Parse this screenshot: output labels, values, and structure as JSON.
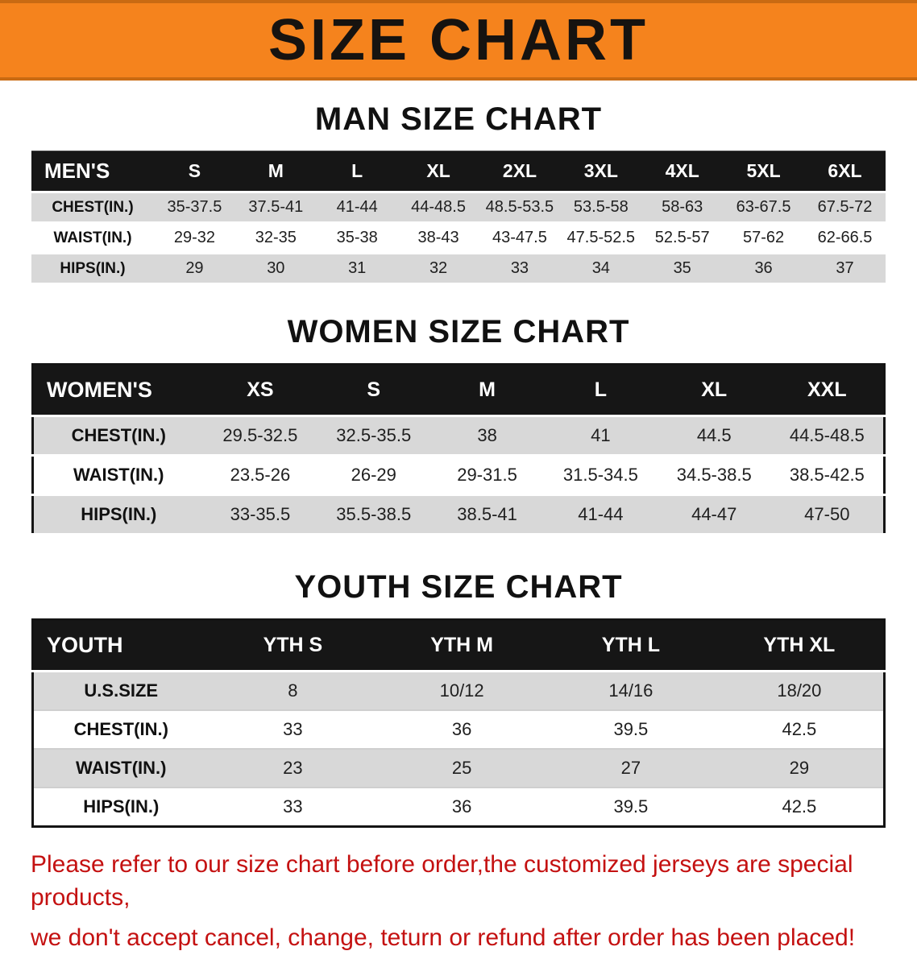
{
  "banner": {
    "title": "SIZE CHART",
    "background": "#f5831d",
    "text_color": "#161310"
  },
  "sections": [
    {
      "heading": "MAN SIZE CHART",
      "table": {
        "label": "MEN'S",
        "columns": [
          "S",
          "M",
          "L",
          "XL",
          "2XL",
          "3XL",
          "4XL",
          "5XL",
          "6XL"
        ],
        "rows": [
          {
            "label": "CHEST(IN.)",
            "values": [
              "35-37.5",
              "37.5-41",
              "41-44",
              "44-48.5",
              "48.5-53.5",
              "53.5-58",
              "58-63",
              "63-67.5",
              "67.5-72"
            ]
          },
          {
            "label": "WAIST(IN.)",
            "values": [
              "29-32",
              "32-35",
              "35-38",
              "38-43",
              "43-47.5",
              "47.5-52.5",
              "52.5-57",
              "57-62",
              "62-66.5"
            ]
          },
          {
            "label": "HIPS(IN.)",
            "values": [
              "29",
              "30",
              "31",
              "32",
              "33",
              "34",
              "35",
              "36",
              "37"
            ]
          }
        ]
      }
    },
    {
      "heading": "WOMEN SIZE CHART",
      "table": {
        "label": "WOMEN'S",
        "columns": [
          "XS",
          "S",
          "M",
          "L",
          "XL",
          "XXL"
        ],
        "rows": [
          {
            "label": "CHEST(IN.)",
            "values": [
              "29.5-32.5",
              "32.5-35.5",
              "38",
              "41",
              "44.5",
              "44.5-48.5"
            ]
          },
          {
            "label": "WAIST(IN.)",
            "values": [
              "23.5-26",
              "26-29",
              "29-31.5",
              "31.5-34.5",
              "34.5-38.5",
              "38.5-42.5"
            ]
          },
          {
            "label": "HIPS(IN.)",
            "values": [
              "33-35.5",
              "35.5-38.5",
              "38.5-41",
              "41-44",
              "44-47",
              "47-50"
            ]
          }
        ]
      }
    },
    {
      "heading": "YOUTH SIZE CHART",
      "table": {
        "label": "YOUTH",
        "columns": [
          "YTH S",
          "YTH M",
          "YTH L",
          "YTH XL"
        ],
        "rows": [
          {
            "label": "U.S.SIZE",
            "values": [
              "8",
              "10/12",
              "14/16",
              "18/20"
            ]
          },
          {
            "label": "CHEST(IN.)",
            "values": [
              "33",
              "36",
              "39.5",
              "42.5"
            ]
          },
          {
            "label": "WAIST(IN.)",
            "values": [
              "23",
              "25",
              "27",
              "29"
            ]
          },
          {
            "label": "HIPS(IN.)",
            "values": [
              "33",
              "36",
              "39.5",
              "42.5"
            ]
          }
        ]
      }
    }
  ],
  "footer": {
    "line1": "Please refer to our size chart before order,the customized jerseys are special products,",
    "line2": "we don't accept cancel, change, teturn or refund after order has been placed!",
    "color": "#c41111"
  }
}
